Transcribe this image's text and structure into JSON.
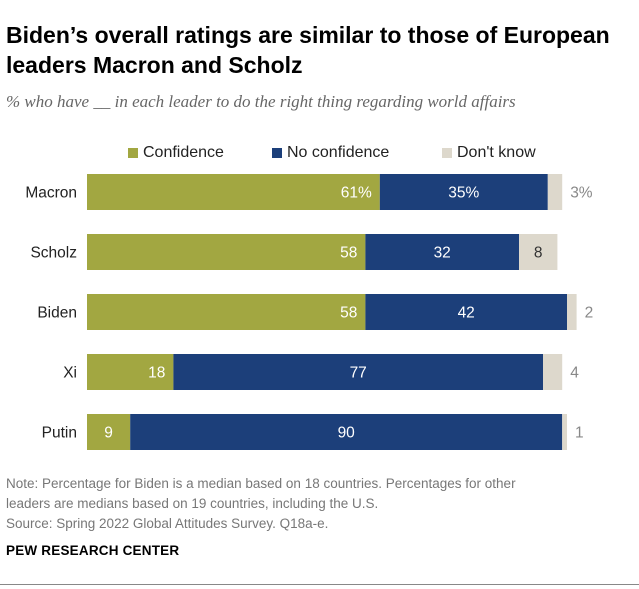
{
  "header": {
    "title": "Biden’s overall ratings are similar to those of European leaders Macron and Scholz",
    "subtitle": "% who have __ in each leader to do the right thing regarding world affairs"
  },
  "legend": {
    "confidence": "Confidence",
    "no_confidence": "No confidence",
    "dont_know": "Don't know"
  },
  "colors": {
    "confidence": "#a2a741",
    "no_confidence": "#1c3f7a",
    "dont_know": "#ddd8cc"
  },
  "chart_data": {
    "type": "bar",
    "orientation": "horizontal",
    "stacked": true,
    "categories": [
      "Macron",
      "Scholz",
      "Biden",
      "Xi",
      "Putin"
    ],
    "series": [
      {
        "name": "Confidence",
        "values": [
          61,
          58,
          58,
          18,
          9
        ],
        "labels": [
          "61%",
          "58",
          "58",
          "18",
          "9"
        ]
      },
      {
        "name": "No confidence",
        "values": [
          35,
          32,
          42,
          77,
          90
        ],
        "labels": [
          "35%",
          "32",
          "42",
          "77",
          "90"
        ]
      },
      {
        "name": "Don't know",
        "values": [
          3,
          8,
          2,
          4,
          1
        ],
        "labels": [
          "3%",
          "8",
          "2",
          "4",
          "1"
        ]
      }
    ],
    "legend_position": "top"
  },
  "footer": {
    "note_line1": "Note: Percentage for Biden is a median based on 18 countries. Percentages for other",
    "note_line2": "leaders are medians based on 19 countries, including the U.S.",
    "source": "Source: Spring 2022 Global Attitudes Survey. Q18a-e.",
    "brand": "PEW RESEARCH CENTER"
  }
}
